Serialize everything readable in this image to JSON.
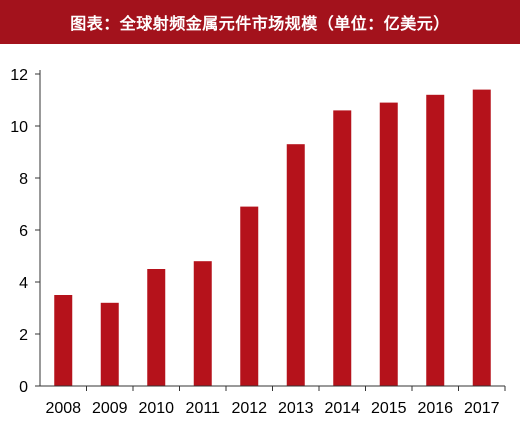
{
  "title": "图表：全球射频金属元件市场规模（单位：亿美元）",
  "chart_data": {
    "type": "bar",
    "categories": [
      "2008",
      "2009",
      "2010",
      "2011",
      "2012",
      "2013",
      "2014",
      "2015",
      "2016",
      "2017"
    ],
    "values": [
      3.5,
      3.2,
      4.5,
      4.8,
      6.9,
      9.3,
      10.6,
      10.9,
      11.2,
      11.4
    ],
    "ylim": [
      0,
      12
    ],
    "yticks": [
      0,
      2,
      4,
      6,
      8,
      10,
      12
    ],
    "grid": false,
    "bar_color": "#b5121b",
    "title_bar_color": "#a3121c"
  }
}
